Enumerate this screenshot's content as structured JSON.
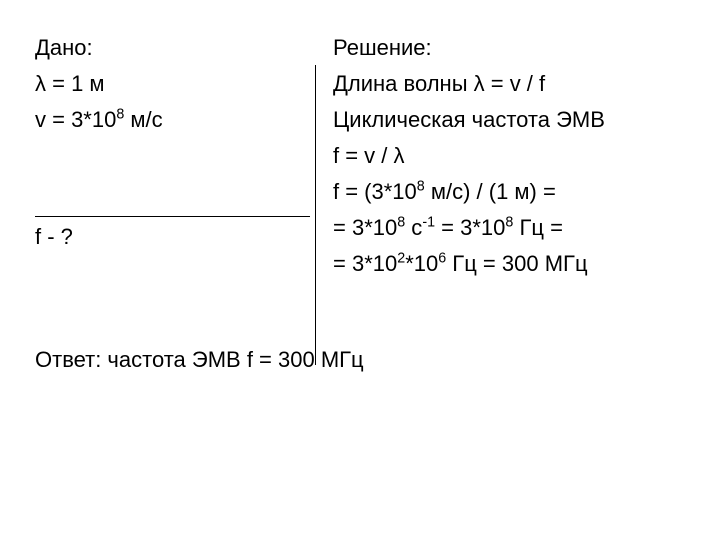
{
  "given": {
    "header": "Дано:",
    "line1": "λ  = 1 м",
    "line2_prefix": "v = 3*10",
    "line2_sup": "8",
    "line2_suffix": " м/c",
    "find": "f - ?"
  },
  "solution": {
    "header": "Решение:",
    "line1": "Длина волны  λ = v / f",
    "line2": "Циклическая частота ЭМВ",
    "line3": "f = v / λ",
    "line4_prefix": "f = (3*10",
    "line4_sup": "8",
    "line4_suffix": " м/с) / (1 м) =",
    "line5_prefix": "= 3*10",
    "line5_sup1": "8",
    "line5_mid": " c",
    "line5_sup2": "-1",
    "line5_mid2": " = 3*10",
    "line5_sup3": "8",
    "line5_suffix": " Гц =",
    "line6_prefix": "= 3*10",
    "line6_sup1": "2",
    "line6_mid": "*10",
    "line6_sup2": "6",
    "line6_suffix": " Гц = 300 МГц"
  },
  "answer": "Ответ: частота ЭМВ f = 300 МГц"
}
